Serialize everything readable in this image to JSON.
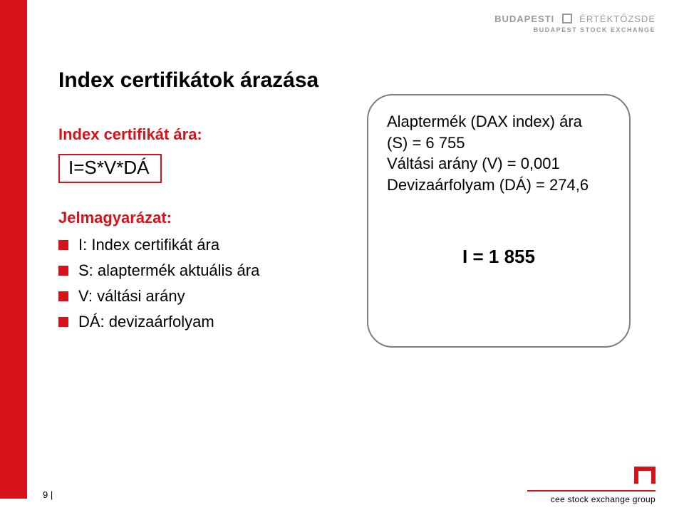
{
  "colors": {
    "accent": "#d8121a",
    "text": "#000000",
    "grey": "#9a9a9a",
    "box_border": "#7f7f7f",
    "white": "#ffffff"
  },
  "top_logo": {
    "word1": "BUDAPESTI",
    "word2": "ÉRTÉKTŐZSDE",
    "subline": "BUDAPEST STOCK EXCHANGE"
  },
  "title": "Index certifikátok árazása",
  "subtitle": "Index certifikát ára:",
  "formula": "I=S*V*DÁ",
  "legend_title": "Jelmagyarázat:",
  "legend_items": [
    "I: Index certifikát ára",
    "S: alaptermék aktuális ára",
    "V: váltási arány",
    "DÁ: devizaárfolyam"
  ],
  "info": {
    "line1": "Alaptermék (DAX index) ára",
    "line2": "(S) = 6 755",
    "line3": "Váltási arány (V) = 0,001",
    "line4": "Devizaárfolyam (DÁ) = 274,6",
    "result": "I = 1 855"
  },
  "footer": "9 |",
  "bottom_logo_text": "cee stock exchange group"
}
